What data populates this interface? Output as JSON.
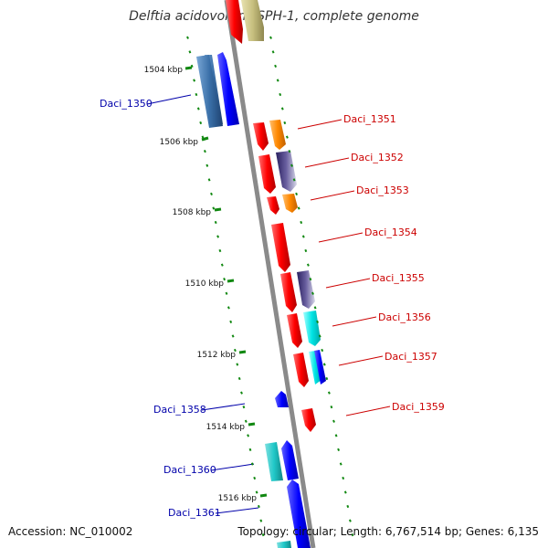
{
  "title": "Delftia acidovorans SPH-1, complete genome",
  "accession": "Accession: NC_010002",
  "topology": "Topology: circular; Length: 6,767,514 bp; Genes: 6,135",
  "colors": {
    "backbone": "#888888",
    "tick": "#118811",
    "reverse_label": "#0000aa",
    "forward_label": "#cc0000",
    "red": "#ff0000",
    "orange": "#ff8800",
    "tan": "#c8c080",
    "purple": "#4a3f80",
    "cyan": "#00e5e5",
    "teal": "#20c8c8",
    "blue": "#0000ff",
    "steelblue": "#3a6fa8"
  },
  "scale": {
    "ticks": [
      "1504 kbp",
      "1506 kbp",
      "1508 kbp",
      "1510 kbp",
      "1512 kbp",
      "1514 kbp",
      "1516 kbp"
    ]
  },
  "genes": [
    {
      "name": "Daci_1350",
      "strand": "reverse"
    },
    {
      "name": "Daci_1351",
      "strand": "forward"
    },
    {
      "name": "Daci_1352",
      "strand": "forward"
    },
    {
      "name": "Daci_1353",
      "strand": "forward"
    },
    {
      "name": "Daci_1354",
      "strand": "forward"
    },
    {
      "name": "Daci_1355",
      "strand": "forward"
    },
    {
      "name": "Daci_1356",
      "strand": "forward"
    },
    {
      "name": "Daci_1357",
      "strand": "forward"
    },
    {
      "name": "Daci_1358",
      "strand": "reverse"
    },
    {
      "name": "Daci_1359",
      "strand": "forward"
    },
    {
      "name": "Daci_1360",
      "strand": "reverse"
    },
    {
      "name": "Daci_1361",
      "strand": "reverse"
    }
  ]
}
